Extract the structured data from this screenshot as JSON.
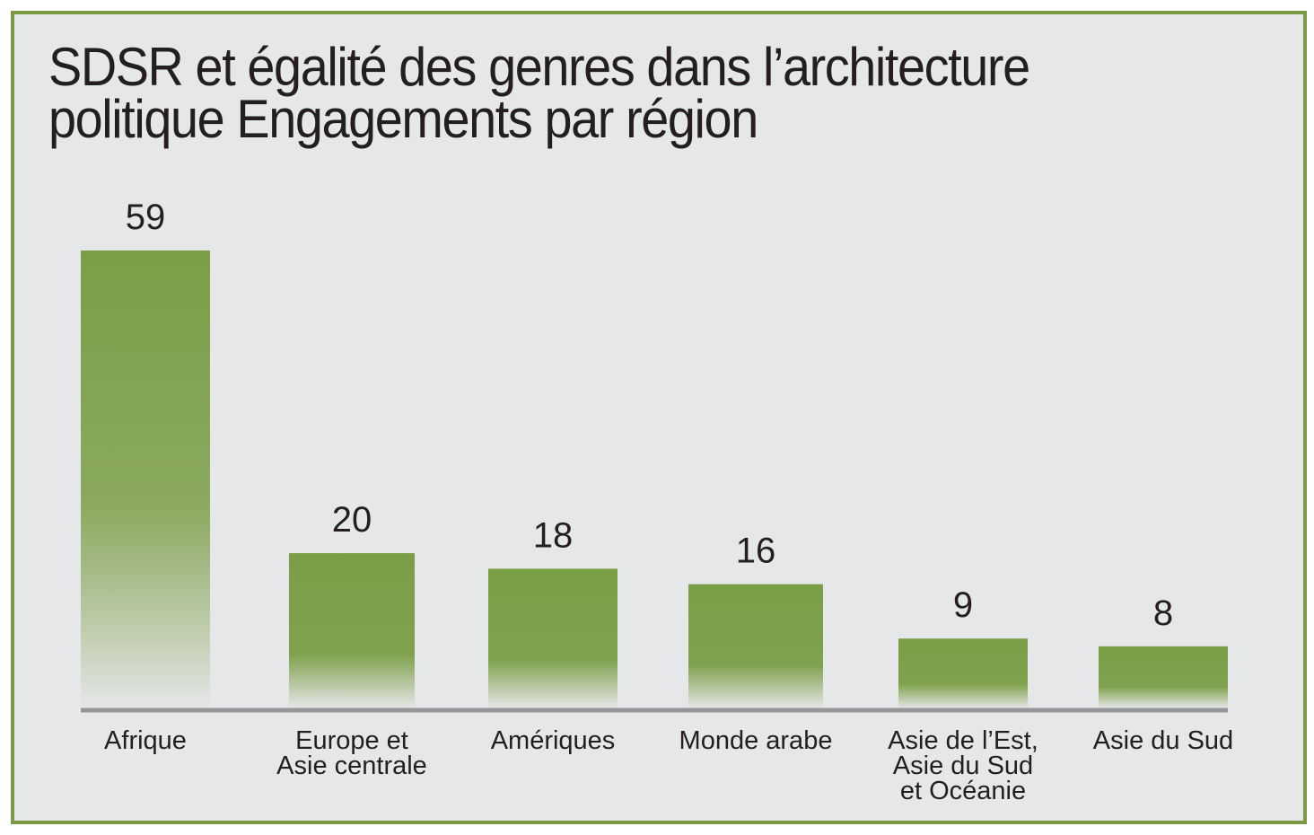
{
  "chart_data": {
    "type": "bar",
    "title": "SDSR et égalité des genres dans l’architecture politique Engagements par région",
    "title_lines": [
      "SDSR et égalité des genres dans l’architecture",
      "politique Engagements par région"
    ],
    "categories": [
      "Afrique",
      "Europe et Asie centrale",
      "Amériques",
      "Monde arabe",
      "Asie de l’Est, Asie du Sud et Océanie",
      "Asie du Sud"
    ],
    "category_lines": [
      [
        "Afrique"
      ],
      [
        "Europe et",
        "Asie centrale"
      ],
      [
        "Amériques"
      ],
      [
        "Monde arabe"
      ],
      [
        "Asie de l’Est,",
        "Asie du Sud",
        "et Océanie"
      ],
      [
        "Asie du Sud"
      ]
    ],
    "values": [
      59,
      20,
      18,
      16,
      9,
      8
    ],
    "data_labels": [
      "59",
      "20",
      "18",
      "16",
      "9",
      "8"
    ],
    "xlabel": "",
    "ylabel": "",
    "ylim": [
      0,
      59
    ],
    "grid": false,
    "legend": "none",
    "colors": {
      "bar": "#7a9e46",
      "bar_fade": "#e6e7e8",
      "background": "#e6e7e8",
      "frame": "#7a9a44",
      "axis": "#939598",
      "text": "#231f20"
    }
  }
}
